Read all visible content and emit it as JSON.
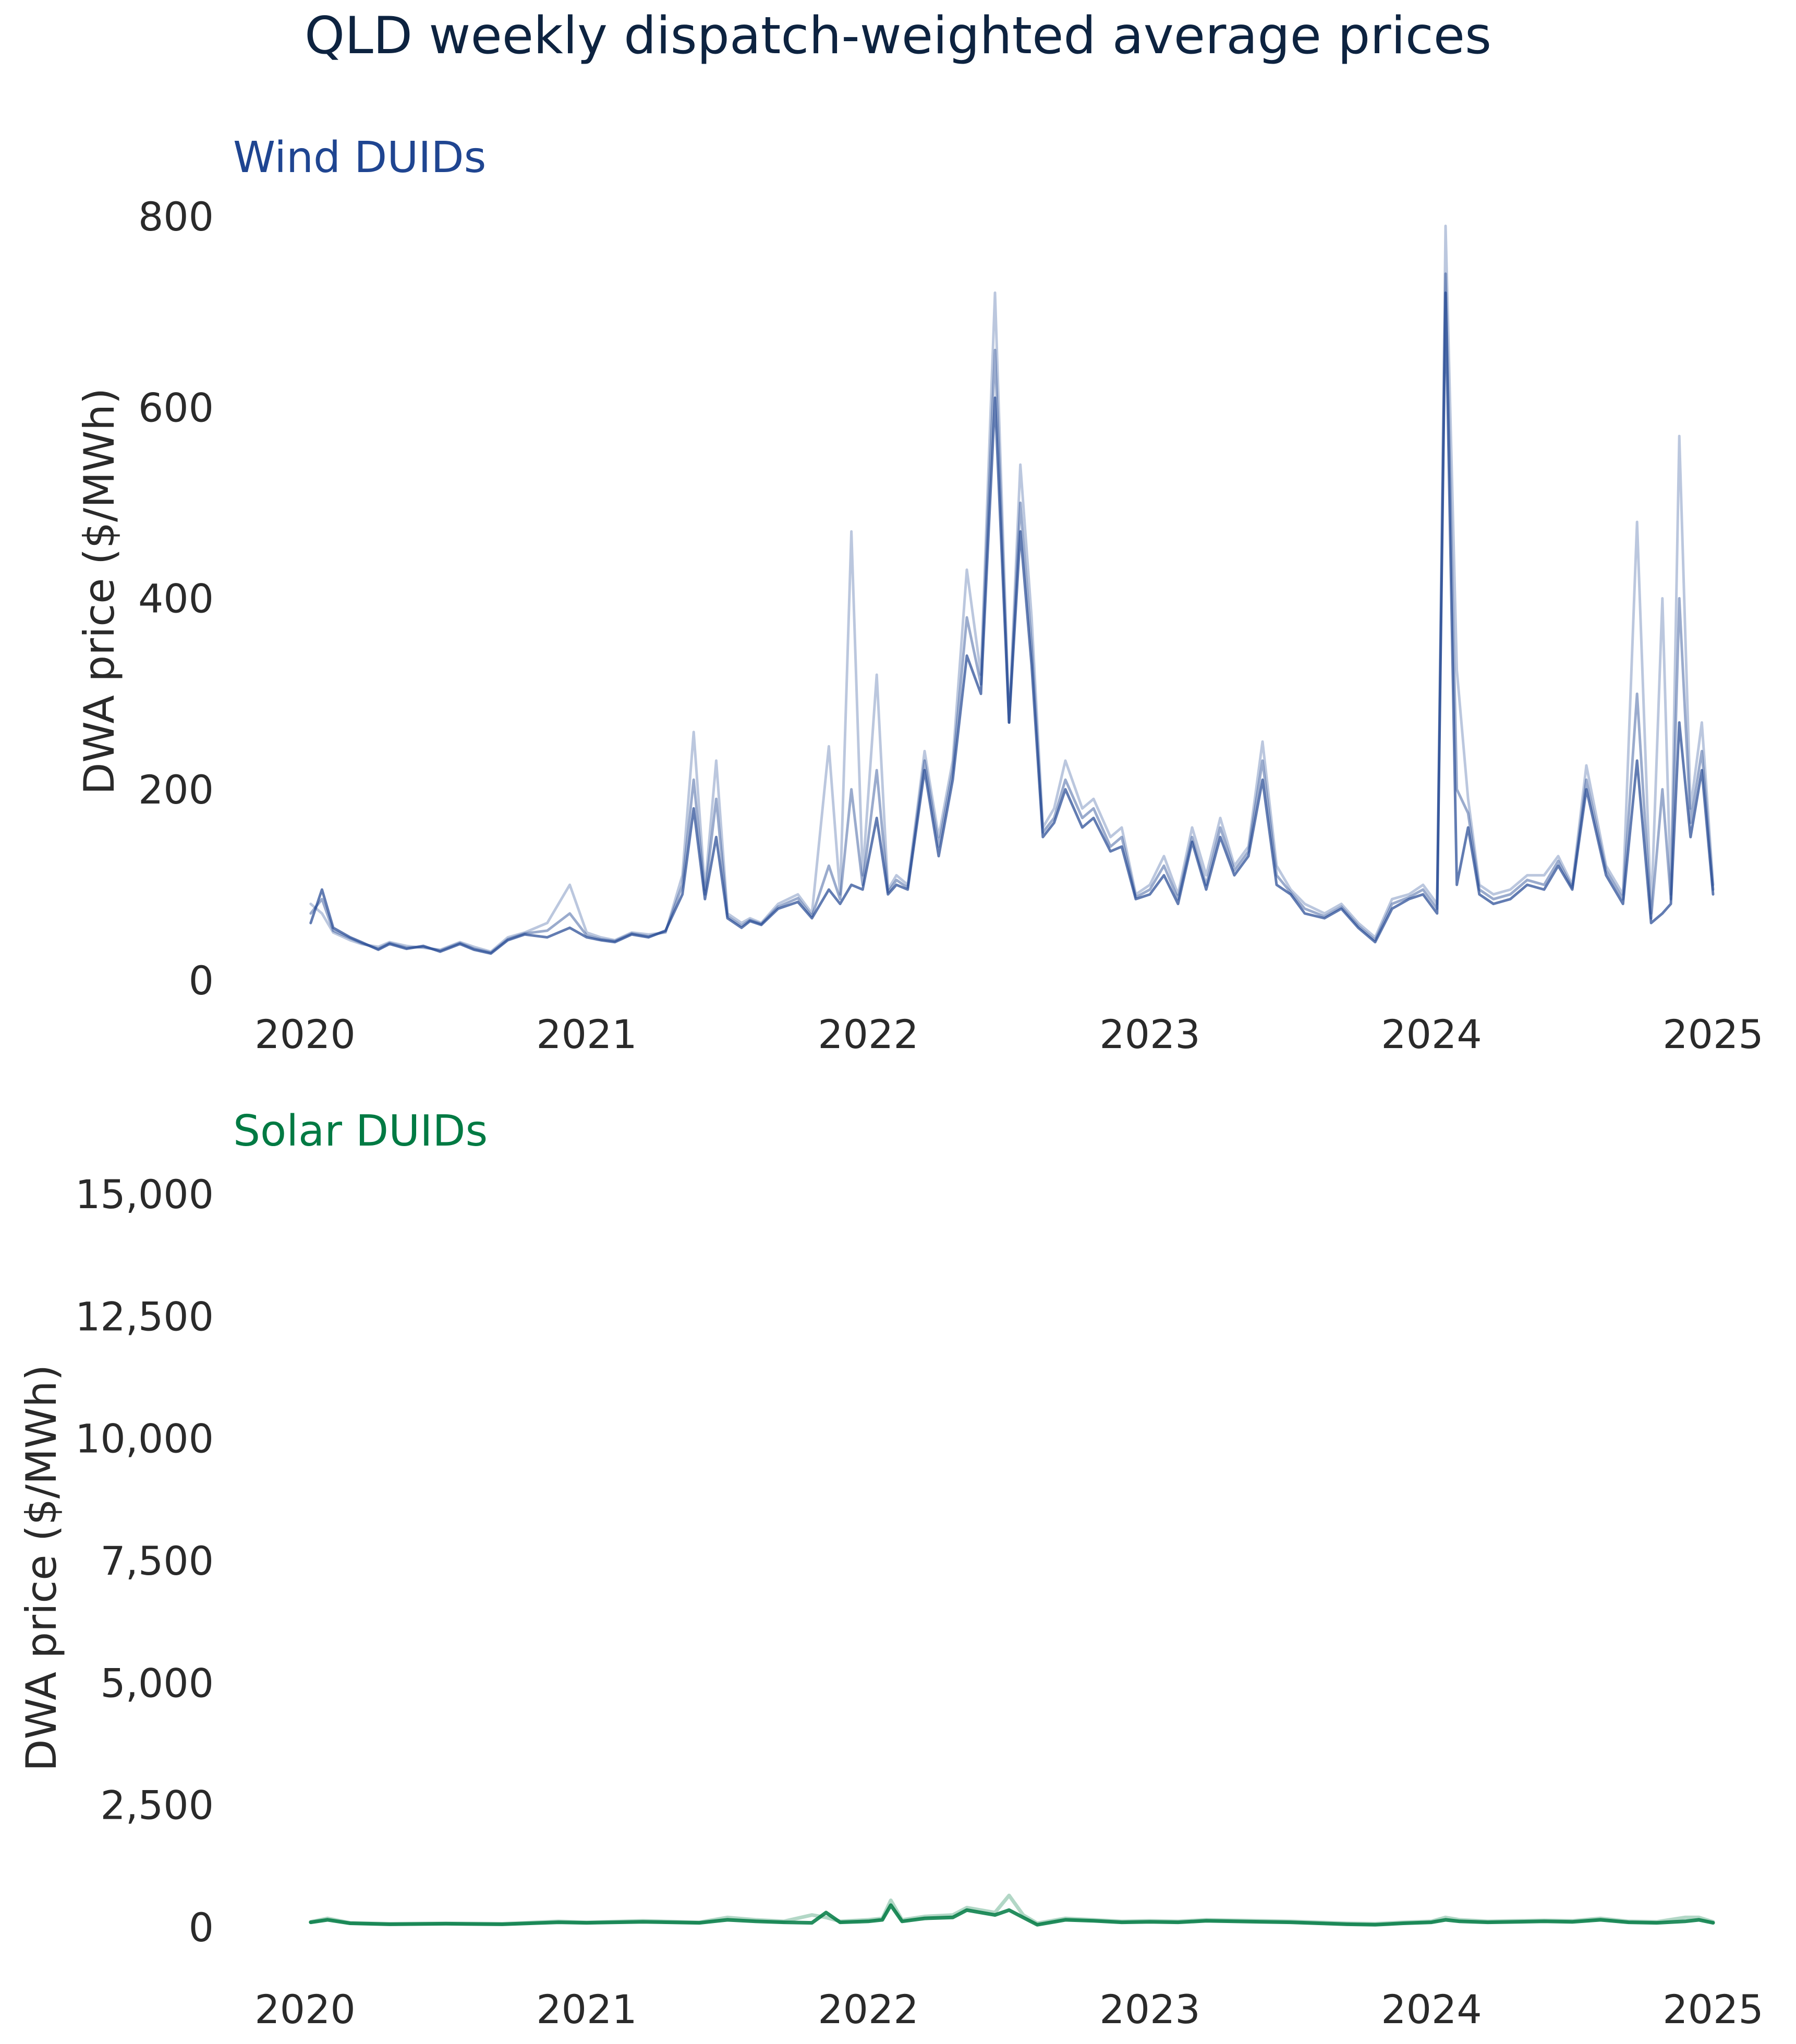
{
  "title": "QLD weekly dispatch-weighted average prices",
  "colors": {
    "title": "#0d2340",
    "wind": "#1f4591",
    "solar": "#007a43",
    "text": "#2a2a2a"
  },
  "chart_data": [
    {
      "type": "line",
      "title": "Wind DUIDs",
      "ylabel": "DWA price ($/MWh)",
      "xlabel": "",
      "xlim": [
        2020,
        2025
      ],
      "ylim": [
        0,
        800
      ],
      "yticks": [
        0,
        200,
        400,
        600,
        800
      ],
      "ytick_labels": [
        "0",
        "200",
        "400",
        "600",
        "800"
      ],
      "xticks": [
        2020,
        2021,
        2022,
        2023,
        2024,
        2025
      ],
      "xtick_labels": [
        "2020",
        "2021",
        "2022",
        "2023",
        "2024",
        "2025"
      ],
      "grid": false,
      "legend": "none",
      "series": [
        {
          "x": [
            2020.02,
            2020.06,
            2020.1,
            2020.16,
            2020.2,
            2020.26,
            2020.3,
            2020.36,
            2020.42,
            2020.48,
            2020.55,
            2020.6,
            2020.66,
            2020.72,
            2020.78,
            2020.86,
            2020.94,
            2021.0,
            2021.05,
            2021.1,
            2021.16,
            2021.22,
            2021.28,
            2021.34,
            2021.38,
            2021.42,
            2021.46,
            2021.5,
            2021.55,
            2021.58,
            2021.62,
            2021.68,
            2021.75,
            2021.8,
            2021.86,
            2021.9,
            2021.94,
            2021.98,
            2022.03,
            2022.07,
            2022.1,
            2022.14,
            2022.2,
            2022.25,
            2022.3,
            2022.35,
            2022.4,
            2022.45,
            2022.5,
            2022.54,
            2022.58,
            2022.62,
            2022.66,
            2022.7,
            2022.76,
            2022.8,
            2022.86,
            2022.9,
            2022.95,
            2023.0,
            2023.05,
            2023.1,
            2023.15,
            2023.2,
            2023.25,
            2023.3,
            2023.35,
            2023.4,
            2023.45,
            2023.5,
            2023.55,
            2023.62,
            2023.68,
            2023.74,
            2023.8,
            2023.86,
            2023.92,
            2023.97,
            2024.02,
            2024.05,
            2024.09,
            2024.13,
            2024.17,
            2024.22,
            2024.28,
            2024.34,
            2024.4,
            2024.45,
            2024.5,
            2024.55,
            2024.62,
            2024.68,
            2024.73,
            2024.78,
            2024.82,
            2024.85,
            2024.88,
            2024.92,
            2024.96,
            2025.0
          ],
          "values": [
            60,
            95,
            55,
            45,
            40,
            32,
            38,
            33,
            36,
            30,
            38,
            32,
            28,
            42,
            48,
            45,
            55,
            45,
            42,
            40,
            48,
            45,
            52,
            90,
            180,
            85,
            150,
            65,
            55,
            62,
            58,
            75,
            82,
            65,
            95,
            80,
            100,
            95,
            170,
            90,
            100,
            95,
            220,
            130,
            210,
            340,
            300,
            610,
            270,
            470,
            330,
            150,
            165,
            200,
            160,
            170,
            135,
            140,
            85,
            90,
            110,
            80,
            145,
            95,
            150,
            110,
            130,
            210,
            100,
            90,
            70,
            65,
            75,
            55,
            40,
            75,
            85,
            90,
            70,
            720,
            100,
            160,
            90,
            80,
            85,
            100,
            95,
            120,
            95,
            200,
            110,
            80,
            230,
            60,
            70,
            80,
            270,
            150,
            220,
            90
          ],
          "opacity": 0.7
        },
        {
          "x": [
            2020.02,
            2020.06,
            2020.1,
            2020.16,
            2020.2,
            2020.26,
            2020.3,
            2020.36,
            2020.42,
            2020.48,
            2020.55,
            2020.6,
            2020.66,
            2020.72,
            2020.78,
            2020.86,
            2020.94,
            2021.0,
            2021.05,
            2021.1,
            2021.16,
            2021.22,
            2021.28,
            2021.34,
            2021.38,
            2021.42,
            2021.46,
            2021.5,
            2021.55,
            2021.58,
            2021.62,
            2021.68,
            2021.75,
            2021.8,
            2021.86,
            2021.9,
            2021.94,
            2021.98,
            2022.03,
            2022.07,
            2022.1,
            2022.14,
            2022.2,
            2022.25,
            2022.3,
            2022.35,
            2022.4,
            2022.45,
            2022.5,
            2022.54,
            2022.58,
            2022.62,
            2022.66,
            2022.7,
            2022.76,
            2022.8,
            2022.86,
            2022.9,
            2022.95,
            2023.0,
            2023.05,
            2023.1,
            2023.15,
            2023.2,
            2023.25,
            2023.3,
            2023.35,
            2023.4,
            2023.45,
            2023.5,
            2023.55,
            2023.62,
            2023.68,
            2023.74,
            2023.8,
            2023.86,
            2023.92,
            2023.97,
            2024.02,
            2024.05,
            2024.09,
            2024.13,
            2024.17,
            2024.22,
            2024.28,
            2024.34,
            2024.4,
            2024.45,
            2024.5,
            2024.55,
            2024.62,
            2024.68,
            2024.73,
            2024.78,
            2024.82,
            2024.85,
            2024.88,
            2024.92,
            2024.96,
            2025.0
          ],
          "values": [
            80,
            70,
            50,
            42,
            38,
            35,
            40,
            36,
            34,
            32,
            40,
            35,
            30,
            45,
            50,
            60,
            100,
            50,
            45,
            42,
            50,
            48,
            50,
            110,
            260,
            95,
            230,
            70,
            60,
            65,
            60,
            80,
            90,
            70,
            245,
            90,
            470,
            110,
            320,
            95,
            110,
            100,
            240,
            150,
            230,
            430,
            320,
            720,
            270,
            540,
            380,
            160,
            180,
            230,
            180,
            190,
            150,
            160,
            90,
            100,
            130,
            90,
            160,
            110,
            170,
            120,
            140,
            250,
            120,
            95,
            80,
            70,
            80,
            60,
            45,
            85,
            90,
            100,
            80,
            790,
            325,
            190,
            100,
            90,
            95,
            110,
            110,
            130,
            100,
            225,
            120,
            90,
            480,
            70,
            400,
            90,
            570,
            180,
            270,
            100
          ],
          "opacity": 0.3
        },
        {
          "x": [
            2020.02,
            2020.06,
            2020.1,
            2020.16,
            2020.2,
            2020.26,
            2020.3,
            2020.36,
            2020.42,
            2020.48,
            2020.55,
            2020.6,
            2020.66,
            2020.72,
            2020.78,
            2020.86,
            2020.94,
            2021.0,
            2021.05,
            2021.1,
            2021.16,
            2021.22,
            2021.28,
            2021.34,
            2021.38,
            2021.42,
            2021.46,
            2021.5,
            2021.55,
            2021.58,
            2021.62,
            2021.68,
            2021.75,
            2021.8,
            2021.86,
            2021.9,
            2021.94,
            2021.98,
            2022.03,
            2022.07,
            2022.1,
            2022.14,
            2022.2,
            2022.25,
            2022.3,
            2022.35,
            2022.4,
            2022.45,
            2022.5,
            2022.54,
            2022.58,
            2022.62,
            2022.66,
            2022.7,
            2022.76,
            2022.8,
            2022.86,
            2022.9,
            2022.95,
            2023.0,
            2023.05,
            2023.1,
            2023.15,
            2023.2,
            2023.25,
            2023.3,
            2023.35,
            2023.4,
            2023.45,
            2023.5,
            2023.55,
            2023.62,
            2023.68,
            2023.74,
            2023.8,
            2023.86,
            2023.92,
            2023.97,
            2024.02,
            2024.05,
            2024.09,
            2024.13,
            2024.17,
            2024.22,
            2024.28,
            2024.34,
            2024.4,
            2024.45,
            2024.5,
            2024.55,
            2024.62,
            2024.68,
            2024.73,
            2024.78,
            2024.82,
            2024.85,
            2024.88,
            2024.92,
            2024.96,
            2025.0
          ],
          "values": [
            70,
            85,
            52,
            44,
            39,
            33,
            39,
            34,
            35,
            31,
            39,
            33,
            29,
            43,
            49,
            52,
            70,
            47,
            43,
            41,
            49,
            46,
            51,
            100,
            210,
            90,
            190,
            67,
            57,
            63,
            59,
            77,
            86,
            67,
            120,
            85,
            200,
            100,
            220,
            92,
            105,
            97,
            230,
            140,
            220,
            380,
            310,
            660,
            270,
            500,
            350,
            155,
            170,
            210,
            170,
            180,
            140,
            150,
            87,
            95,
            120,
            85,
            150,
            100,
            160,
            115,
            135,
            230,
            110,
            92,
            75,
            67,
            77,
            57,
            42,
            80,
            87,
            95,
            75,
            740,
            200,
            175,
            95,
            85,
            90,
            105,
            100,
            125,
            97,
            210,
            115,
            85,
            300,
            65,
            200,
            85,
            400,
            165,
            240,
            95
          ],
          "opacity": 0.45
        }
      ]
    },
    {
      "type": "line",
      "title": "Solar DUIDs",
      "ylabel": "DWA price ($/MWh)",
      "xlabel": "",
      "xlim": [
        2020,
        2025
      ],
      "ylim": [
        0,
        15000
      ],
      "yticks": [
        0,
        2500,
        5000,
        7500,
        10000,
        12500,
        15000
      ],
      "ytick_labels": [
        "0",
        "2,500",
        "5,000",
        "7,500",
        "10,000",
        "12,500",
        "15,000"
      ],
      "xticks": [
        2020,
        2021,
        2022,
        2023,
        2024,
        2025
      ],
      "xtick_labels": [
        "2020",
        "2021",
        "2022",
        "2023",
        "2024",
        "2025"
      ],
      "grid": false,
      "legend": "none",
      "series": [
        {
          "x": [
            2020.02,
            2020.08,
            2020.16,
            2020.3,
            2020.5,
            2020.7,
            2020.9,
            2021.0,
            2021.2,
            2021.4,
            2021.5,
            2021.6,
            2021.7,
            2021.8,
            2021.85,
            2021.9,
            2022.0,
            2022.05,
            2022.08,
            2022.12,
            2022.2,
            2022.3,
            2022.35,
            2022.4,
            2022.45,
            2022.5,
            2022.55,
            2022.6,
            2022.7,
            2022.8,
            2022.9,
            2023.0,
            2023.1,
            2023.2,
            2023.3,
            2023.4,
            2023.5,
            2023.6,
            2023.7,
            2023.8,
            2023.9,
            2024.0,
            2024.05,
            2024.1,
            2024.2,
            2024.3,
            2024.4,
            2024.5,
            2024.6,
            2024.7,
            2024.8,
            2024.9,
            2024.95,
            2025.0
          ],
          "values": [
            100,
            150,
            80,
            60,
            70,
            60,
            100,
            90,
            110,
            90,
            150,
            120,
            100,
            90,
            300,
            100,
            120,
            150,
            450,
            120,
            180,
            200,
            350,
            300,
            250,
            350,
            200,
            50,
            150,
            130,
            100,
            110,
            100,
            130,
            120,
            110,
            100,
            80,
            60,
            50,
            80,
            100,
            150,
            120,
            100,
            110,
            120,
            110,
            150,
            100,
            90,
            120,
            150,
            90
          ],
          "opacity": 0.85
        },
        {
          "x": [
            2020.02,
            2020.08,
            2020.16,
            2020.3,
            2020.5,
            2020.7,
            2020.9,
            2021.0,
            2021.2,
            2021.4,
            2021.5,
            2021.6,
            2021.7,
            2021.8,
            2021.85,
            2021.9,
            2022.0,
            2022.05,
            2022.08,
            2022.12,
            2022.2,
            2022.3,
            2022.35,
            2022.4,
            2022.45,
            2022.5,
            2022.55,
            2022.6,
            2022.7,
            2022.8,
            2022.9,
            2023.0,
            2023.1,
            2023.2,
            2023.3,
            2023.4,
            2023.5,
            2023.6,
            2023.7,
            2023.8,
            2023.9,
            2024.0,
            2024.05,
            2024.1,
            2024.2,
            2024.3,
            2024.4,
            2024.5,
            2024.6,
            2024.7,
            2024.8,
            2024.9,
            2024.95,
            2025.0
          ],
          "values": [
            110,
            180,
            90,
            70,
            80,
            70,
            120,
            100,
            130,
            100,
            200,
            150,
            120,
            250,
            200,
            120,
            150,
            180,
            550,
            150,
            220,
            250,
            400,
            350,
            300,
            650,
            250,
            80,
            180,
            150,
            120,
            130,
            120,
            150,
            140,
            130,
            120,
            100,
            80,
            70,
            100,
            120,
            200,
            150,
            120,
            130,
            140,
            130,
            180,
            120,
            110,
            200,
            200,
            110
          ],
          "opacity": 0.3
        }
      ]
    }
  ]
}
